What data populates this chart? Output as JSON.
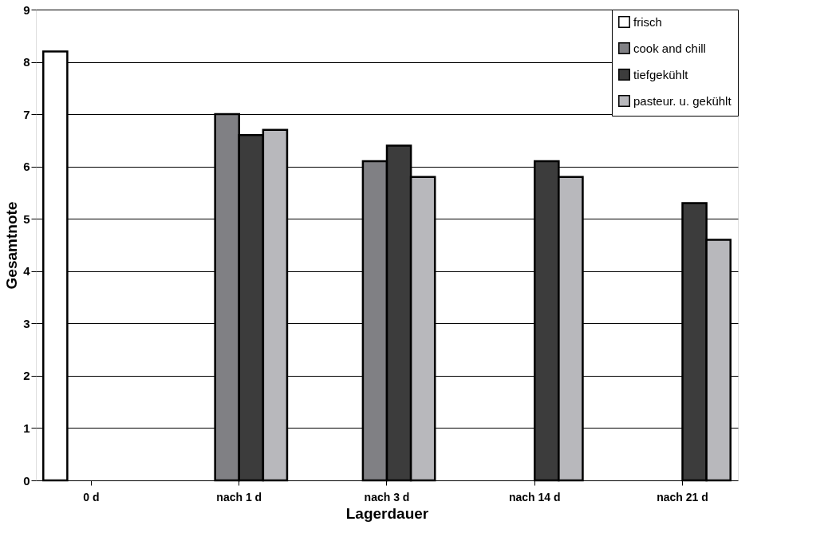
{
  "chart_data": {
    "type": "bar",
    "xlabel": "Lagerdauer",
    "ylabel": "Gesamtnote",
    "categories": [
      "0 d",
      "nach 1 d",
      "nach 3 d",
      "nach 14 d",
      "nach 21 d"
    ],
    "series": [
      {
        "name": "frisch",
        "color": "#ffffff",
        "values": [
          8.2,
          null,
          null,
          null,
          null
        ]
      },
      {
        "name": "cook and chill",
        "color": "#808084",
        "values": [
          null,
          7.0,
          6.1,
          null,
          null
        ]
      },
      {
        "name": "tiefgekühlt",
        "color": "#3c3c3c",
        "values": [
          null,
          6.6,
          6.4,
          6.1,
          5.3
        ]
      },
      {
        "name": "pasteur. u. gekühlt",
        "color": "#b8b8bc",
        "values": [
          null,
          6.7,
          5.8,
          5.8,
          4.6
        ]
      }
    ],
    "ylim": [
      0,
      9
    ],
    "yticks": [
      0,
      1,
      2,
      3,
      4,
      5,
      6,
      7,
      8,
      9
    ],
    "grid": "y",
    "legend": "top right"
  }
}
